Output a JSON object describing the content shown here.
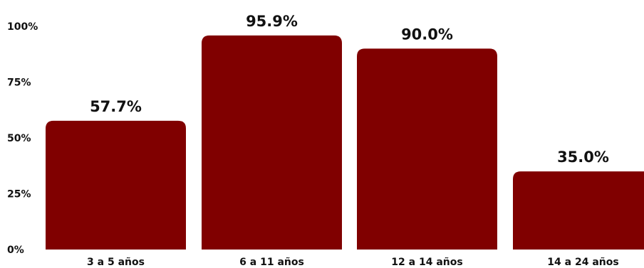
{
  "chart_data": {
    "type": "bar",
    "title": "",
    "xlabel": "",
    "ylabel": "",
    "categories": [
      "3 a 5 años",
      "6 a 11 años",
      "12 a 14 años",
      "14 a 24 años"
    ],
    "values": [
      57.7,
      95.9,
      90.0,
      35.0
    ],
    "value_labels": [
      "57.7%",
      "95.9%",
      "90.0%",
      "35.0%"
    ],
    "ylim": [
      0,
      100
    ],
    "yticks": [
      0,
      25,
      50,
      75,
      100
    ],
    "ytick_labels": [
      "0%",
      "25%",
      "50%",
      "75%",
      "100%"
    ],
    "grid": false,
    "legend": "none",
    "bar_color": "#800000"
  }
}
